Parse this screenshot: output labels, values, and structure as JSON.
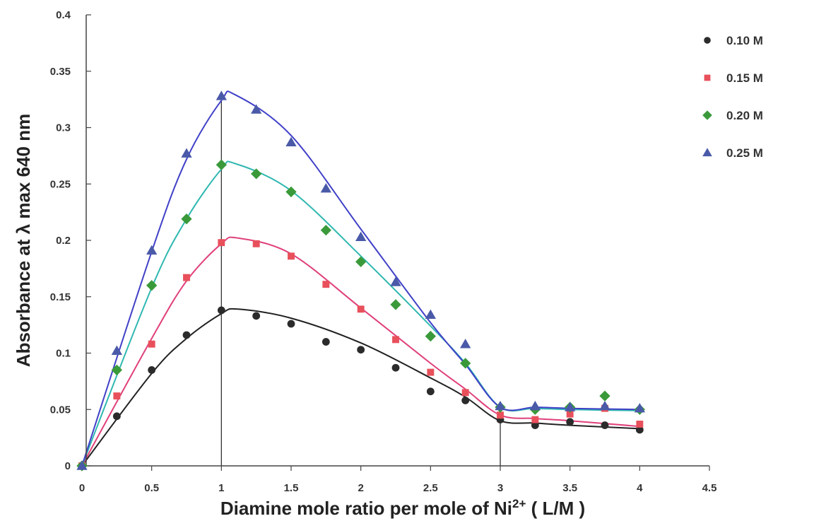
{
  "chart_data": {
    "type": "scatter",
    "xlabel": "Diamine mole ratio per mole of Ni",
    "xlabel_superscript": "2+",
    "xlabel_suffix": " ( L/M )",
    "ylabel": "Absorbance at λ max 640 nm",
    "xlim": [
      0,
      4.5
    ],
    "ylim": [
      0,
      0.4
    ],
    "x_ticks": [
      "0",
      "0.5",
      "1",
      "1.5",
      "2",
      "2.5",
      "3",
      "3.5",
      "4",
      "4.5"
    ],
    "y_ticks": [
      "0",
      "0.05",
      "0.1",
      "0.15",
      "0.2",
      "0.25",
      "0.3",
      "0.35",
      "0.4"
    ],
    "legend_position": "top-right",
    "reference_lines_x": [
      1,
      3
    ],
    "series": [
      {
        "name": "0.10 M",
        "marker": "circle",
        "color": "#2b2b2b",
        "x": [
          0,
          0.25,
          0.5,
          0.75,
          1,
          1.25,
          1.5,
          1.75,
          2,
          2.25,
          2.5,
          2.75,
          3,
          3.25,
          3.5,
          3.75,
          4
        ],
        "y": [
          0,
          0.044,
          0.085,
          0.116,
          0.138,
          0.133,
          0.126,
          0.11,
          0.103,
          0.087,
          0.066,
          0.058,
          0.041,
          0.036,
          0.039,
          0.036,
          0.032
        ]
      },
      {
        "name": "0.15 M",
        "marker": "square",
        "color": "#e8505b",
        "x": [
          0,
          0.25,
          0.5,
          0.75,
          1,
          1.25,
          1.5,
          1.75,
          2,
          2.25,
          2.5,
          2.75,
          3,
          3.25,
          3.5,
          3.75,
          4
        ],
        "y": [
          0,
          0.062,
          0.108,
          0.167,
          0.198,
          0.197,
          0.186,
          0.161,
          0.139,
          0.112,
          0.083,
          0.065,
          0.045,
          0.041,
          0.046,
          0.051,
          0.037
        ]
      },
      {
        "name": "0.20 M",
        "marker": "diamond",
        "color": "#3a9a3a",
        "x": [
          0,
          0.25,
          0.5,
          0.75,
          1,
          1.25,
          1.5,
          1.75,
          2,
          2.25,
          2.5,
          2.75,
          3,
          3.25,
          3.5,
          3.75,
          4
        ],
        "y": [
          0,
          0.085,
          0.16,
          0.219,
          0.267,
          0.259,
          0.243,
          0.209,
          0.181,
          0.143,
          0.115,
          0.091,
          0.052,
          0.05,
          0.052,
          0.062,
          0.05
        ]
      },
      {
        "name": "0.25 M",
        "marker": "triangle",
        "color": "#4a5aa8",
        "x": [
          0,
          0.25,
          0.5,
          0.75,
          1,
          1.25,
          1.5,
          1.75,
          2,
          2.25,
          2.5,
          2.75,
          3,
          3.25,
          3.5,
          3.75,
          4
        ],
        "y": [
          0,
          0.102,
          0.191,
          0.277,
          0.328,
          0.316,
          0.287,
          0.246,
          0.203,
          0.163,
          0.134,
          0.108,
          0.053,
          0.053,
          0.052,
          0.053,
          0.051
        ]
      }
    ],
    "fit_curves": [
      {
        "series": "0.10 M",
        "color": "#222222",
        "x": [
          0,
          0.5,
          0.75,
          1,
          1.12,
          1.5,
          2,
          2.5,
          2.75,
          3,
          3.25,
          3.5,
          4
        ],
        "y": [
          0,
          0.082,
          0.113,
          0.135,
          0.139,
          0.131,
          0.109,
          0.078,
          0.061,
          0.04,
          0.038,
          0.036,
          0.033
        ]
      },
      {
        "series": "0.15 M",
        "color": "#e0407a",
        "x": [
          0,
          0.5,
          0.75,
          1,
          1.12,
          1.5,
          2,
          2.5,
          2.75,
          3,
          3.25,
          3.5,
          4
        ],
        "y": [
          0,
          0.113,
          0.164,
          0.197,
          0.202,
          0.188,
          0.14,
          0.091,
          0.068,
          0.045,
          0.042,
          0.04,
          0.035
        ]
      },
      {
        "series": "0.20 M",
        "color": "#2fb8b0",
        "x": [
          0,
          0.5,
          0.75,
          1,
          1.1,
          1.5,
          2,
          2.5,
          2.75,
          3,
          3.25,
          3.5,
          4
        ],
        "y": [
          0,
          0.158,
          0.219,
          0.263,
          0.268,
          0.244,
          0.186,
          0.124,
          0.091,
          0.052,
          0.051,
          0.05,
          0.049
        ]
      },
      {
        "series": "0.25 M",
        "color": "#4040c8",
        "x": [
          0,
          0.5,
          0.75,
          1,
          1.1,
          1.5,
          2,
          2.5,
          2.75,
          3,
          3.25,
          3.5,
          4
        ],
        "y": [
          0,
          0.19,
          0.272,
          0.324,
          0.329,
          0.293,
          0.21,
          0.127,
          0.09,
          0.052,
          0.052,
          0.051,
          0.05
        ]
      }
    ]
  }
}
